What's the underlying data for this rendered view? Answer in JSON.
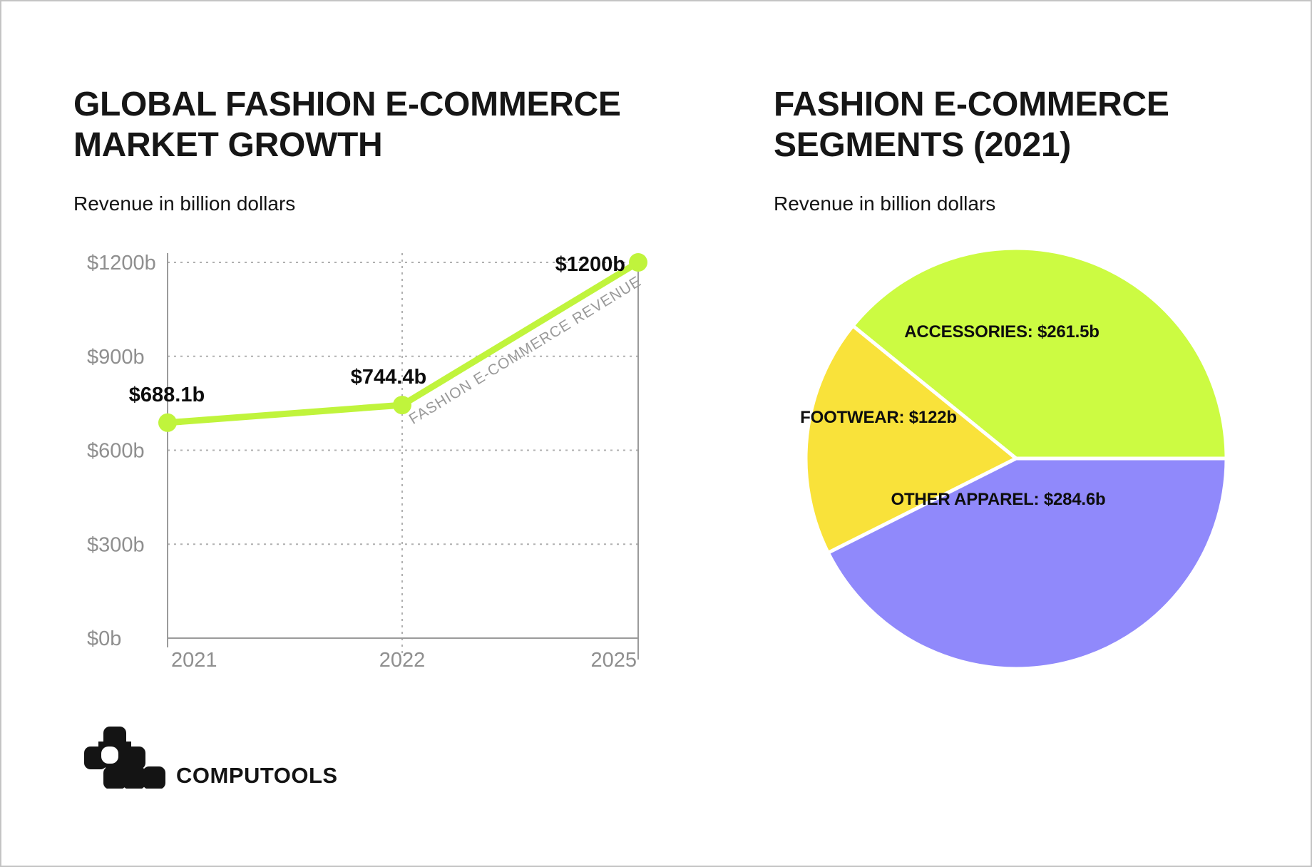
{
  "frame": {
    "border_color": "#c4c4c4",
    "background": "#ffffff"
  },
  "left_chart": {
    "title_line1": "GLOBAL FASHION E-COMMERCE",
    "title_line2": "MARKET GROWTH",
    "subtitle": "Revenue in billion dollars"
  },
  "right_chart": {
    "title_line1": "FASHION E-COMMERCE",
    "title_line2": "SEGMENTS (2021)",
    "subtitle": "Revenue in billion dollars"
  },
  "footer": {
    "brand": "COMPUTOOLS",
    "logo_icon": "computools-pixel-logo"
  },
  "colors": {
    "axis": "#9b9b9b",
    "grid": "#b0b0b0",
    "tick_label": "#8f8f8f",
    "data_label": "#0d0d0d",
    "line": "#c0f43c",
    "inline_series_label": "#9a9a9a",
    "pie_green": "#ccfb42",
    "pie_yellow": "#f9e23a",
    "pie_purple": "#9089fb"
  },
  "chart_data": [
    {
      "type": "line",
      "title": "GLOBAL FASHION E-COMMERCE MARKET GROWTH",
      "subtitle": "Revenue in billion dollars",
      "x": [
        "2021",
        "2022",
        "2025"
      ],
      "series": [
        {
          "name": "FASHION E-COMMERCE REVENUE",
          "values": [
            688.1,
            744.4,
            1200
          ],
          "color": "#c0f43c"
        }
      ],
      "point_labels": [
        "$688.1b",
        "$744.4b",
        "$1200b"
      ],
      "yticks": [
        {
          "value": 0,
          "label": "$0b"
        },
        {
          "value": 300,
          "label": "$300b"
        },
        {
          "value": 600,
          "label": "$600b"
        },
        {
          "value": 900,
          "label": "$900b"
        },
        {
          "value": 1200,
          "label": "$1200b"
        }
      ],
      "ylim": [
        0,
        1200
      ],
      "grid": "dashed",
      "legend_position": "inline-rotated-along-line"
    },
    {
      "type": "pie",
      "title": "FASHION E-COMMERCE SEGMENTS (2021)",
      "subtitle": "Revenue in billion dollars",
      "slices": [
        {
          "label": "ACCESSORIES",
          "value": 261.5,
          "display_label": "ACCESSORIES: $261.5b",
          "color": "#ccfb42"
        },
        {
          "label": "FOOTWEAR",
          "value": 122,
          "display_label": "FOOTWEAR: $122b",
          "color": "#f9e23a"
        },
        {
          "label": "OTHER APPAREL",
          "value": 284.6,
          "display_label": "OTHER APPAREL: $284.6b",
          "color": "#9089fb"
        }
      ],
      "start_angle_deg": 0,
      "direction": "counterclockwise"
    }
  ]
}
